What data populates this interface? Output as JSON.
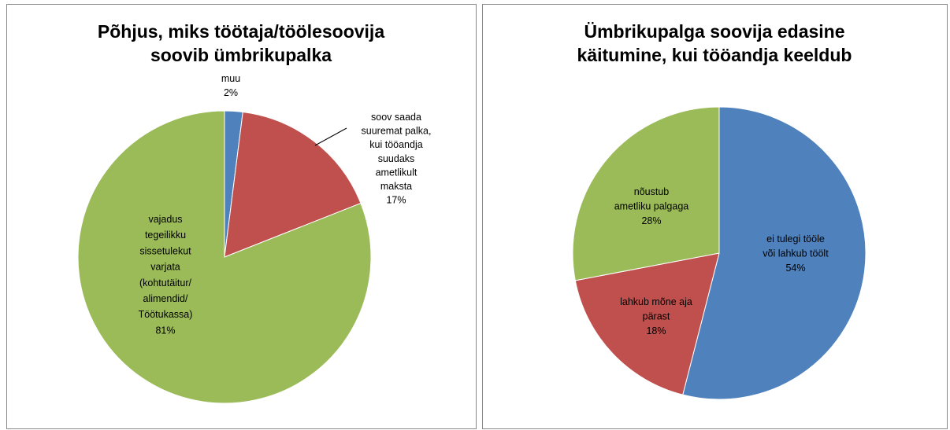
{
  "chart_data": [
    {
      "type": "pie",
      "title": "Põhjus, miks töötaja/töölesoovija\nsoovib ümbrikupalka",
      "categories": [
        "muu",
        "soov saada\nsuuremat palka,\nkui tööandja\nsuudaks\nametlikult\nmaksta",
        "vajadus\ntegeilikku\nsissetulekut\nvarjata\n(kohtutäitur/\nalimendid/\nTöötukassa)"
      ],
      "values": [
        2,
        17,
        81
      ],
      "value_labels": [
        "2%",
        "17%",
        "81%"
      ],
      "colors": [
        "#4f81bd",
        "#c0504d",
        "#9bbb59"
      ]
    },
    {
      "type": "pie",
      "title": "Ümbrikupalga soovija edasine\nkäitumine, kui tööandja keeldub",
      "categories": [
        "ei tulegi tööle\nvõi lahkub töölt",
        "lahkub mõne aja\npärast",
        "nõustub\nametliku palgaga"
      ],
      "values": [
        54,
        18,
        28
      ],
      "value_labels": [
        "54%",
        "18%",
        "28%"
      ],
      "colors": [
        "#4f81bd",
        "#c0504d",
        "#9bbb59"
      ]
    }
  ]
}
